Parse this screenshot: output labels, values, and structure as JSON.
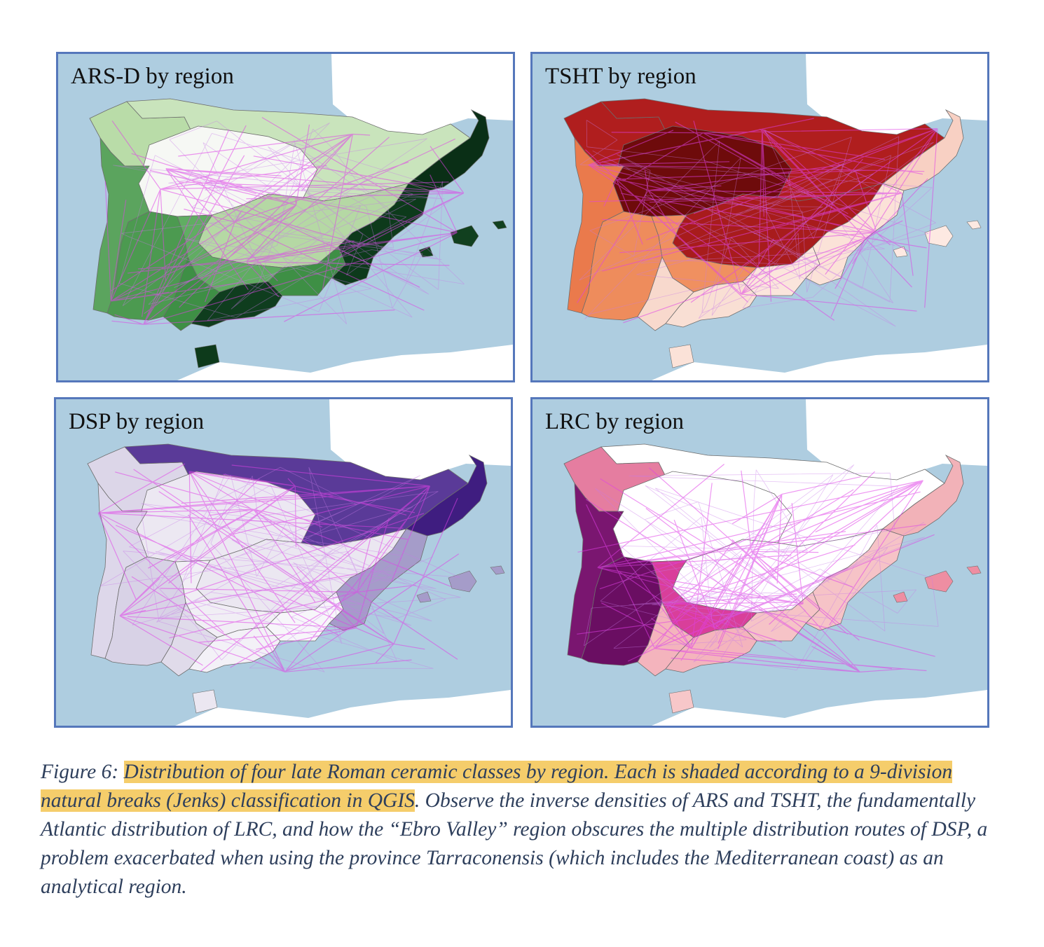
{
  "panels": [
    {
      "title": "ARS-D by region",
      "palette": {
        "outside": "#ffffff",
        "coast": "#dcefd4",
        "core": "#fbfcfa"
      },
      "regions": {
        "north": "#c9e4bc",
        "centre": "#f6f8f4",
        "galicia": "#b9dca8",
        "westcoast": "#5ba45e",
        "portugal_south": "#4c9a50",
        "meseta": "#b5d8a4",
        "manchega": "#60ad62",
        "betica_w": "#3e8f45",
        "betica_c": "#0f3d1e",
        "betica_e": "#3e8f45",
        "levante": "#0d3a1b",
        "catalonia": "#0a2f16",
        "islands": "#11401f",
        "africa": "#0d3a1b"
      }
    },
    {
      "title": "TSHT by region",
      "palette": {},
      "regions": {
        "north": "#b01e1e",
        "centre": "#6e0b0b",
        "galicia": "#b01e1e",
        "westcoast": "#ea7a4c",
        "portugal_south": "#ee8c5c",
        "meseta": "#a81c1c",
        "manchega": "#f09060",
        "betica_w": "#f8d9cd",
        "betica_c": "#f9dfd4",
        "betica_e": "#fbe5dc",
        "levante": "#fbe2d8",
        "catalonia": "#f8d0c3",
        "islands": "#fde9e2",
        "africa": "#fbe2d8"
      }
    },
    {
      "title": "DSP by region",
      "palette": {},
      "regions": {
        "north": "#5a3a98",
        "centre": "#ece8f2",
        "galicia": "#dcd6e8",
        "westcoast": "#ddd7ea",
        "portugal_south": "#d8d2e6",
        "meseta": "#ebe7f1",
        "manchega": "#f1eef5",
        "betica_w": "#e0dbea",
        "betica_c": "#f3f1f7",
        "betica_e": "#f7f6fa",
        "levante": "#a59cc9",
        "catalonia": "#3f1d80",
        "islands": "#a59cc9",
        "africa": "#ebe7f1"
      }
    },
    {
      "title": "LRC by region",
      "palette": {},
      "regions": {
        "north": "#ffffff",
        "centre": "#ffffff",
        "galicia": "#e57da0",
        "westcoast": "#7a1670",
        "portugal_south": "#6a0e62",
        "meseta": "#ffffff",
        "manchega": "#d93f9a",
        "betica_w": "#f4b4bd",
        "betica_c": "#f4b4bd",
        "betica_e": "#f6c3c7",
        "levante": "#f6c3c7",
        "catalonia": "#f2b2b8",
        "islands": "#ee8ea2",
        "africa": "#f7c7c9"
      }
    }
  ],
  "caption": {
    "label": "Figure 6: ",
    "highlighted": "Distribution of four late Roman ceramic classes by region. Each is shaded according to a 9-division natural breaks (Jenks) classification in QGIS",
    "rest": ". Observe the inverse densities of ARS and TSHT, the fundamentally Atlantic distribution of LRC, and how the “Ebro Valley” region obscures the multiple distribution routes of DSP, a problem exacerbated when using the province Tarraconensis (which includes the Mediterranean coast) as an analytical region."
  }
}
